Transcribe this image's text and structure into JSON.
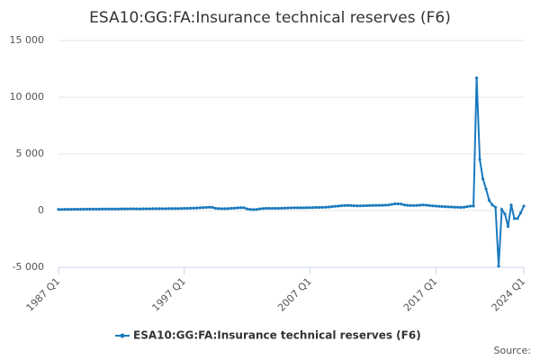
{
  "chart_data": {
    "type": "line",
    "title": "ESA10:GG:FA:Insurance technical reserves (F6)",
    "categories": [
      "1987 Q1",
      null,
      null,
      null,
      null,
      null,
      null,
      null,
      null,
      null,
      null,
      null,
      null,
      null,
      null,
      null,
      null,
      null,
      null,
      null,
      null,
      null,
      null,
      null,
      null,
      null,
      null,
      null,
      null,
      null,
      null,
      null,
      null,
      null,
      null,
      null,
      null,
      null,
      null,
      null,
      "1997 Q1",
      null,
      null,
      null,
      null,
      null,
      null,
      null,
      null,
      null,
      null,
      null,
      null,
      null,
      null,
      null,
      null,
      null,
      null,
      null,
      null,
      null,
      null,
      null,
      null,
      null,
      null,
      null,
      null,
      null,
      null,
      null,
      null,
      null,
      null,
      null,
      null,
      null,
      null,
      null,
      "2007 Q1",
      null,
      null,
      null,
      null,
      null,
      null,
      null,
      null,
      null,
      null,
      null,
      null,
      null,
      null,
      null,
      null,
      null,
      null,
      null,
      null,
      null,
      null,
      null,
      null,
      null,
      null,
      null,
      null,
      null,
      null,
      null,
      null,
      null,
      null,
      null,
      null,
      null,
      null,
      null,
      "2017 Q1",
      null,
      null,
      null,
      null,
      null,
      null,
      null,
      null,
      null,
      null,
      null,
      null,
      null,
      null,
      null,
      null,
      null,
      null,
      null,
      null,
      null,
      null,
      null,
      null,
      null,
      null,
      null,
      "2024 Q1"
    ],
    "series": [
      {
        "name": "ESA10:GG:FA:Insurance technical reserves (F6)",
        "color": "#1a7abf",
        "values": [
          100,
          100,
          110,
          110,
          110,
          120,
          120,
          120,
          120,
          130,
          130,
          130,
          130,
          130,
          140,
          140,
          140,
          140,
          140,
          140,
          150,
          150,
          150,
          160,
          160,
          150,
          150,
          160,
          160,
          160,
          170,
          170,
          170,
          170,
          170,
          180,
          180,
          180,
          180,
          190,
          200,
          200,
          210,
          220,
          230,
          250,
          270,
          280,
          300,
          280,
          200,
          180,
          170,
          170,
          180,
          200,
          220,
          240,
          260,
          250,
          150,
          100,
          90,
          100,
          150,
          180,
          200,
          200,
          200,
          200,
          200,
          210,
          220,
          230,
          240,
          250,
          250,
          250,
          250,
          260,
          260,
          270,
          280,
          280,
          290,
          300,
          320,
          350,
          380,
          400,
          430,
          450,
          460,
          450,
          430,
          420,
          420,
          430,
          440,
          450,
          460,
          460,
          470,
          470,
          480,
          500,
          550,
          600,
          600,
          580,
          500,
          470,
          450,
          450,
          460,
          480,
          500,
          480,
          450,
          420,
          400,
          380,
          360,
          350,
          330,
          320,
          300,
          300,
          280,
          300,
          350,
          400,
          400,
          11700,
          4500,
          2800,
          1900,
          900,
          500,
          300,
          -4900,
          100,
          -300,
          -1400,
          500,
          -700,
          -700,
          -200,
          400
        ]
      }
    ],
    "ylim": [
      -5000,
      15000
    ],
    "yticks": [
      {
        "value": -5000,
        "label": "-5 000"
      },
      0,
      {
        "value": 5000,
        "label": "5 000"
      },
      {
        "value": 10000,
        "label": "10 000"
      },
      {
        "value": 15000,
        "label": "15 000"
      }
    ],
    "grid": true,
    "source": "Source:"
  }
}
